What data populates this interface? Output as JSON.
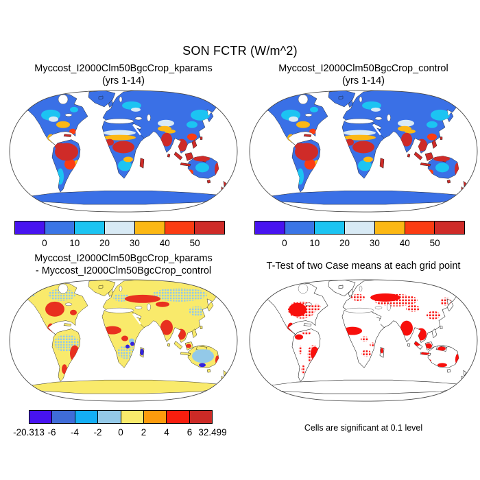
{
  "figure": {
    "title": "SON FCTR (W/m^2)",
    "background": "#ffffff"
  },
  "panels": [
    {
      "id": "kparams",
      "title_line1": "Myccost_I2000Clm50BgcCrop_kparams",
      "title_line2": "(yrs 1-14)"
    },
    {
      "id": "control",
      "title_line1": "Myccost_I2000Clm50BgcCrop_control",
      "title_line2": "(yrs 1-14)"
    },
    {
      "id": "difference",
      "title_line1": "Myccost_I2000Clm50BgcCrop_kparams",
      "title_line2": "- Myccost_I2000Clm50BgcCrop_control"
    },
    {
      "id": "ttest",
      "title_line1": "T-Test of two Case means at each grid point",
      "caption": "Cells are significant at 0.1 level"
    }
  ],
  "colorbars": {
    "fctr": {
      "colors": [
        "#4713f0",
        "#3a75e6",
        "#1cc4f2",
        "#d8eaf5",
        "#fcb814",
        "#fb3c12",
        "#cf2b28"
      ],
      "tick_labels": [
        "0",
        "10",
        "20",
        "30",
        "40",
        "50"
      ],
      "tick_mode": "internal"
    },
    "diff": {
      "colors": [
        "#4713f0",
        "#3f6cd8",
        "#14aef5",
        "#93c9e8",
        "#f9ea6b",
        "#fc9b0d",
        "#f81e0e",
        "#cc2a26"
      ],
      "tick_labels": [
        "-20.313",
        "-6",
        "-4",
        "-2",
        "0",
        "2",
        "4",
        "6",
        "32.499"
      ],
      "tick_mode": "edges"
    }
  },
  "palette": {
    "ocean": "#ffffff",
    "coast": "#1a1a1a",
    "frame": "#4a4a4a",
    "land_blue": "#3a70e6",
    "cyan": "#1cc4f2",
    "pale": "#d8eaf5",
    "amber": "#fcb814",
    "orange_red": "#fb3c12",
    "red": "#cf2b28",
    "land_yellow": "#f9ea6b",
    "light_blue": "#93c9e8",
    "diff_red": "#e8301f",
    "deep_blue": "#3322e0",
    "ttest_red": "#f80f0c"
  },
  "chart_data": [
    {
      "type": "heatmap",
      "title": "Myccost_I2000Clm50BgcCrop_kparams (yrs 1-14)",
      "variable": "FCTR",
      "season": "SON",
      "units": "W/m^2",
      "projection": "robinson-world-map",
      "levels": [
        0,
        10,
        20,
        30,
        40,
        50
      ],
      "legend_position": "bottom",
      "pattern_summary": "High latitudes and Sahara blue (low values); Amazon, central Africa, India, Southeast Asia, Indonesia and Australian coasts red (high values >50)"
    },
    {
      "type": "heatmap",
      "title": "Myccost_I2000Clm50BgcCrop_control (yrs 1-14)",
      "variable": "FCTR",
      "season": "SON",
      "units": "W/m^2",
      "projection": "robinson-world-map",
      "levels": [
        0,
        10,
        20,
        30,
        40,
        50
      ],
      "legend_position": "bottom",
      "pattern_summary": "Nearly identical spatial pattern to kparams case"
    },
    {
      "type": "heatmap",
      "title": "Myccost_I2000Clm50BgcCrop_kparams - Myccost_I2000Clm50BgcCrop_control",
      "variable": "FCTR difference",
      "units": "W/m^2",
      "projection": "robinson-world-map",
      "levels": [
        -6,
        -4,
        -2,
        0,
        2,
        4,
        6
      ],
      "min": -20.313,
      "max": 32.499,
      "legend_position": "bottom",
      "pattern_summary": "Mostly near-zero (yellow) with positive (red) patches over central North America, eastern Europe/Kazakhstan, west Africa, India, Southeast Asia, eastern Brazil; scattered negative (blue) cells over Siberia, Amazon, southern Africa, Australia"
    },
    {
      "type": "heatmap",
      "title": "T-Test of two Case means at each grid point",
      "annotation": "Cells are significant at 0.1 level",
      "projection": "robinson-world-map",
      "pattern_summary": "Red cells mark statistically significant grid points: central/eastern US, Europe-Russia belt, west Africa, India, Southeast Asia, Indonesia, eastern Brazil, southern Australia"
    }
  ]
}
